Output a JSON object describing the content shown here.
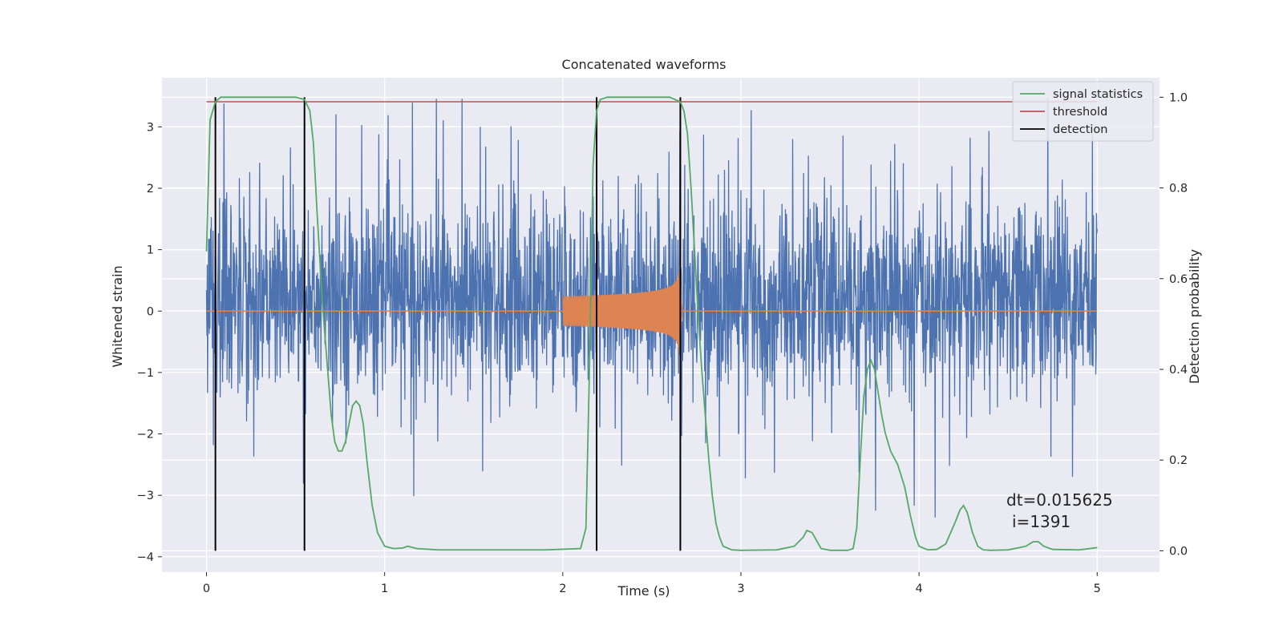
{
  "chart_data": {
    "type": "line",
    "title": "Concatenated waveforms",
    "xlabel": "Time (s)",
    "ylabel": "Whitened strain",
    "y2label": "Detection probability",
    "xlim": [
      -0.25,
      5.35
    ],
    "ylim": [
      -4.25,
      3.8
    ],
    "y2lim": [
      -0.047,
      1.043
    ],
    "x_ticks": [
      0,
      1,
      2,
      3,
      4,
      5
    ],
    "y_ticks": [
      -4,
      -3,
      -2,
      -1,
      0,
      1,
      2,
      3
    ],
    "y2_ticks": [
      0.0,
      0.2,
      0.4,
      0.6,
      0.8,
      1.0
    ],
    "grid": true,
    "legend_position": "top-right",
    "annotations": [
      "dt=0.015625",
      "i=1391"
    ],
    "colors": {
      "noise": "#4c72b0",
      "injection": "#dd8452",
      "signal_statistics": "#55a868",
      "threshold": "#c44e52",
      "detection": "#000000",
      "background": "#eaeaf2"
    },
    "series": [
      {
        "name": "",
        "axis": "left",
        "description_values": "whitened strain noise, approx N(0, 1), x in [0, 5] s",
        "x_range": [
          0,
          5
        ],
        "envelope": [
          -3.7,
          3.45
        ]
      },
      {
        "name": "",
        "axis": "left",
        "x_range": [
          2.0,
          2.67
        ],
        "chirp_amplitude_start": 0.3,
        "chirp_amplitude_peak": 1.0,
        "peak_time": 2.66
      },
      {
        "name": "signal statistics",
        "axis": "right",
        "x": [
          0.0,
          0.02,
          0.05,
          0.08,
          0.12,
          0.2,
          0.5,
          0.55,
          0.58,
          0.6,
          0.62,
          0.65,
          0.7,
          0.72,
          0.74,
          0.76,
          0.78,
          0.8,
          0.82,
          0.84,
          0.86,
          0.88,
          0.9,
          0.93,
          0.96,
          1.0,
          1.05,
          1.1,
          1.13,
          1.18,
          1.3,
          1.6,
          1.9,
          2.1,
          2.13,
          2.15,
          2.17,
          2.19,
          2.21,
          2.25,
          2.4,
          2.6,
          2.66,
          2.68,
          2.7,
          2.72,
          2.74,
          2.76,
          2.78,
          2.8,
          2.82,
          2.84,
          2.86,
          2.88,
          2.9,
          2.95,
          3.0,
          3.2,
          3.3,
          3.35,
          3.37,
          3.4,
          3.45,
          3.5,
          3.6,
          3.63,
          3.65,
          3.67,
          3.69,
          3.71,
          3.73,
          3.75,
          3.77,
          3.79,
          3.81,
          3.84,
          3.88,
          3.92,
          3.95,
          3.98,
          4.0,
          4.05,
          4.1,
          4.15,
          4.2,
          4.23,
          4.25,
          4.27,
          4.3,
          4.33,
          4.36,
          4.4,
          4.5,
          4.6,
          4.64,
          4.67,
          4.7,
          4.75,
          4.9,
          5.0
        ],
        "values": [
          0.66,
          0.95,
          0.99,
          1.0,
          1.0,
          1.0,
          1.0,
          0.995,
          0.97,
          0.9,
          0.75,
          0.55,
          0.3,
          0.24,
          0.22,
          0.22,
          0.24,
          0.28,
          0.32,
          0.33,
          0.32,
          0.28,
          0.2,
          0.1,
          0.04,
          0.01,
          0.005,
          0.006,
          0.01,
          0.005,
          0.002,
          0.002,
          0.002,
          0.005,
          0.05,
          0.4,
          0.85,
          0.97,
          0.995,
          1.0,
          1.0,
          1.0,
          0.99,
          0.97,
          0.92,
          0.8,
          0.66,
          0.52,
          0.4,
          0.3,
          0.2,
          0.12,
          0.06,
          0.03,
          0.01,
          0.002,
          0.001,
          0.002,
          0.01,
          0.03,
          0.045,
          0.04,
          0.005,
          0.001,
          0.001,
          0.005,
          0.05,
          0.2,
          0.34,
          0.4,
          0.42,
          0.4,
          0.35,
          0.3,
          0.26,
          0.22,
          0.19,
          0.14,
          0.08,
          0.03,
          0.01,
          0.002,
          0.003,
          0.015,
          0.06,
          0.09,
          0.1,
          0.085,
          0.04,
          0.01,
          0.002,
          0.001,
          0.002,
          0.01,
          0.02,
          0.02,
          0.01,
          0.003,
          0.002,
          0.007
        ]
      },
      {
        "name": "threshold",
        "axis": "right",
        "x": [
          0,
          5
        ],
        "values": [
          0.99,
          0.99
        ]
      },
      {
        "name": "detection",
        "axis": "right",
        "type": "vlines",
        "x": [
          0.05,
          0.55,
          2.19,
          2.66
        ],
        "y_range": [
          0.0,
          1.0
        ]
      }
    ]
  }
}
